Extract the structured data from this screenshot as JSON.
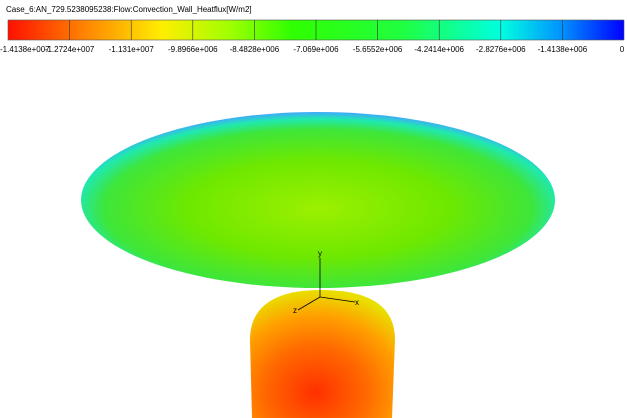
{
  "legend": {
    "title": "Case_6:AN_729.5238095238:Flow:Convection_Wall_Heatflux[W/m2]",
    "tick_labels": [
      "-1.4138e+007",
      "-1.2724e+007",
      "-1.131e+007",
      "-9.8966e+006",
      "-8.4828e+006",
      "-7.069e+006",
      "-5.6552e+006",
      "-4.2414e+006",
      "-2.8276e+006",
      "-1.4138e+006",
      "0"
    ]
  },
  "axes_triad": {
    "y": "y",
    "x": "x",
    "z": "z"
  }
}
